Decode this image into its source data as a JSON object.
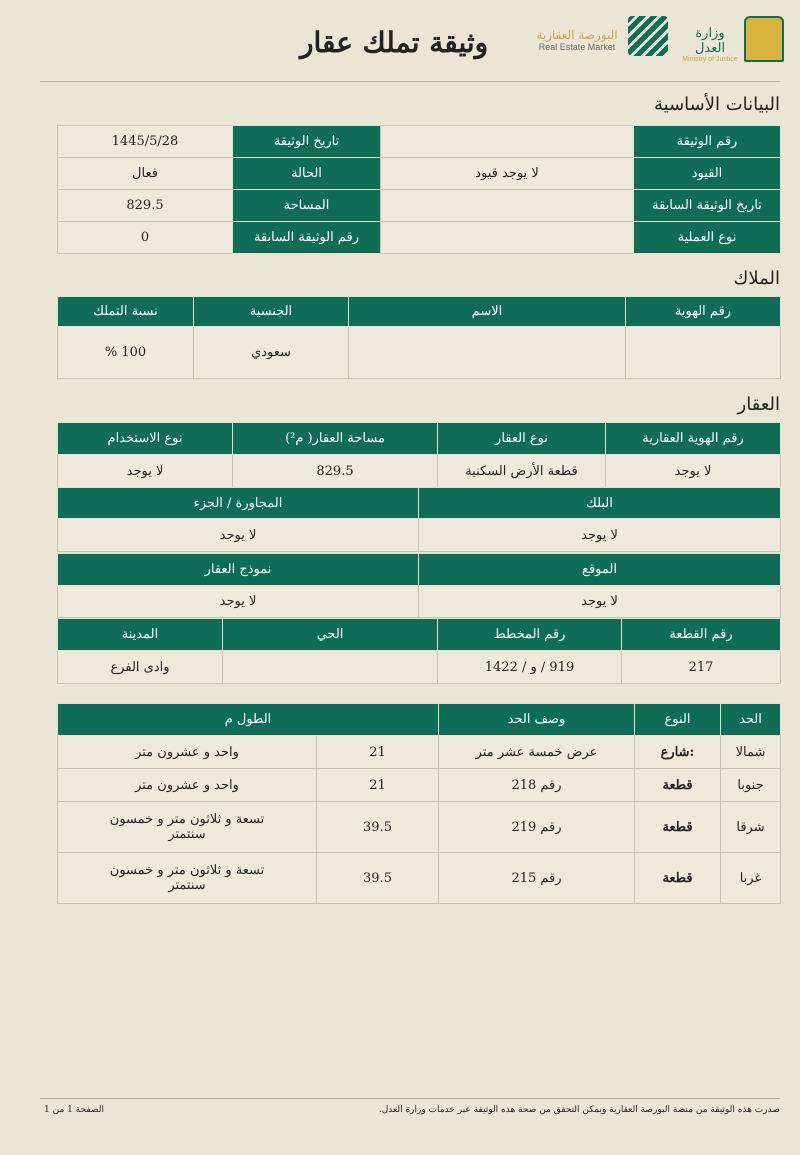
{
  "header": {
    "title": "وثيقة تملك عقار",
    "logo_rem_ar": "البورصة العقارية",
    "logo_rem_en": "Real Estate Market",
    "logo_moj_ar": "وزارة العدل",
    "logo_moj_en": "Ministry of Justice",
    "accent": "#0e6c57"
  },
  "basic": {
    "title": "البيانات الأساسية",
    "rows": [
      {
        "l1": "رقم الوثيقة",
        "v1": "",
        "l2": "تاريخ الوثيقة",
        "v2": "1445/5/28"
      },
      {
        "l1": "القيود",
        "v1": "لا يوجد قيود",
        "l2": "الحالة",
        "v2": "فعال"
      },
      {
        "l1": "تاريخ الوثيقة السابقة",
        "v1": "",
        "l2": "المساحة",
        "v2": "829.5"
      },
      {
        "l1": "نوع العملية",
        "v1": "",
        "l2": "رقم الوثيقة السابقة",
        "v2": "0"
      }
    ]
  },
  "owners": {
    "title": "الملاك",
    "headers": [
      "رقم الهوية",
      "الاسم",
      "الجنسية",
      "نسبة التملك"
    ],
    "row": [
      "",
      "",
      "سعودي",
      "100 %"
    ]
  },
  "property": {
    "title": "العقار",
    "h1": [
      "رقم الهوية العقارية",
      "نوع العقار",
      "مساحة العقار( م²)",
      "نوع الاستخدام"
    ],
    "r1": [
      "لا يوجد",
      "قطعة الأرض السكنية",
      "829.5",
      "لا يوجد"
    ],
    "h2": [
      "البلك",
      "المجاورة / الجزء"
    ],
    "r2": [
      "لا يوجد",
      "لا يوجد"
    ],
    "h3": [
      "الموقع",
      "نموذج العقار"
    ],
    "r3": [
      "لا يوجد",
      "لا يوجد"
    ],
    "h4": [
      "رقم القطعة",
      "رقم المخطط",
      "الحي",
      "المدينة"
    ],
    "r4": [
      "217",
      "919 / و / 1422",
      "",
      "وادى الفرع"
    ]
  },
  "boundaries": {
    "headers": [
      "الحد",
      "النوع",
      "وصف الحد",
      "الطول م"
    ],
    "rows": [
      {
        "side": "شمالا",
        "type": ":شارع",
        "desc": "عرض خمسة عشر متر",
        "len": "21",
        "len_text": "واحد و عشرون متر"
      },
      {
        "side": "جنوبا",
        "type": "قطعة",
        "desc": "رقم 218",
        "len": "21",
        "len_text": "واحد و عشرون متر"
      },
      {
        "side": "شرقا",
        "type": "قطعة",
        "desc": "رقم 219",
        "len": "39.5",
        "len_text": "تسعة و ثلاثون متر و خمسون سنتمتر"
      },
      {
        "side": "غربا",
        "type": "قطعة",
        "desc": "رقم 215",
        "len": "39.5",
        "len_text": "تسعة و ثلاثون متر و خمسون سنتمتر"
      }
    ]
  },
  "footer": {
    "note": "صدرت هذه الوثيقة من منصة البورصة العقارية ويمكن التحقق من صحة هذه الوثيقة عبر خدمات وزارة العدل.",
    "page": "الصفحة 1 من 1"
  }
}
